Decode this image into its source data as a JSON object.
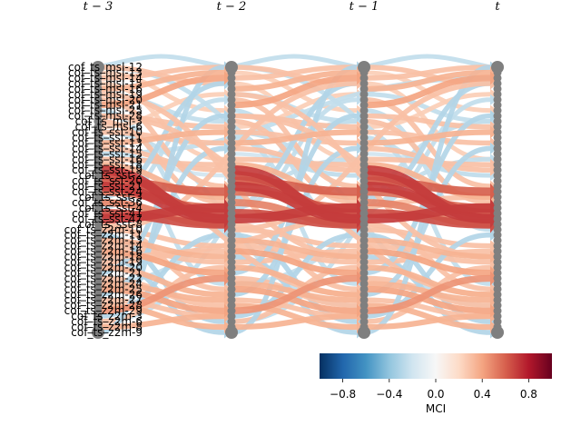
{
  "time_labels": [
    "t − 3",
    "t − 2",
    "t − 1",
    "t"
  ],
  "node_labels": [
    "cof_ts_msl-12",
    "cof_ts_msl-13",
    "cof_ts_msl-14",
    "cof_ts_msl-15",
    "cof_ts_msl-16",
    "cof_ts_msl-19",
    "cof_ts_msl-20",
    "cof_ts_msl-21",
    "cof_ts_msl-25",
    "cof_ts_msl-28",
    "cof_ts_msl-3",
    "cof_ts_msl-6",
    "cof_ts_sst-10",
    "cof_ts_sst-11",
    "cof_ts_sst-13",
    "cof_ts_sst-14",
    "cof_ts_sst-15",
    "cof_ts_sst-16",
    "cof_ts_sst-18",
    "cof_ts_sst-19",
    "cof_ts_sst-2",
    "cof_ts_sst-20",
    "cof_ts_sst-21",
    "cof_ts_sst-24",
    "cof_ts_sst-3",
    "cof_ts_sst-36",
    "cof_ts_sst-4",
    "cof_ts_sst-41",
    "cof_ts_sst-47",
    "cof_ts_sst-8",
    "cof_ts_z2m-10",
    "cof_ts_z2m-11",
    "cof_ts_z2m-13",
    "cof_ts_z2m-14",
    "cof_ts_z2m-16",
    "cof_ts_z2m-18",
    "cof_ts_z2m-19",
    "cof_ts_z2m-20",
    "cof_ts_z2m-21",
    "cof_ts_z2m-22",
    "cof_ts_z2m-24",
    "cof_ts_z2m-25",
    "cof_ts_z2m-26",
    "cof_ts_z2m-27",
    "cof_ts_z2m-28",
    "cof_ts_z2m-29",
    "cof_ts_z2m-3",
    "cof_ts_z2m-6",
    "cof_ts_z2m-8",
    "cof_ts_z2m-9"
  ],
  "colorbar": {
    "title": "MCI",
    "ticks": [
      "−0.8",
      "−0.4",
      "0.0",
      "0.4",
      "0.8"
    ],
    "range": [
      -1,
      1
    ],
    "colors": [
      "#053061",
      "#2166ac",
      "#4393c3",
      "#92c5de",
      "#d1e5f0",
      "#f7f7f7",
      "#fddbc7",
      "#f4a582",
      "#d6604d",
      "#b2182b",
      "#67001f"
    ]
  },
  "node_color": "#7f7f7f",
  "links": [
    {
      "from": 0,
      "to": 0,
      "lag": 1,
      "v": -0.25
    },
    {
      "from": 0,
      "to": 3,
      "lag": 1,
      "v": 0.3
    },
    {
      "from": 1,
      "to": 8,
      "lag": 1,
      "v": 0.25
    },
    {
      "from": 2,
      "to": 0,
      "lag": 1,
      "v": 0.3
    },
    {
      "from": 3,
      "to": 17,
      "lag": 1,
      "v": 0.25
    },
    {
      "from": 4,
      "to": 1,
      "lag": 1,
      "v": 0.35
    },
    {
      "from": 5,
      "to": 10,
      "lag": 1,
      "v": -0.25
    },
    {
      "from": 6,
      "to": 22,
      "lag": 1,
      "v": 0.3
    },
    {
      "from": 7,
      "to": 2,
      "lag": 1,
      "v": 0.4
    },
    {
      "from": 8,
      "to": 30,
      "lag": 1,
      "v": -0.25
    },
    {
      "from": 9,
      "to": 11,
      "lag": 1,
      "v": 0.3
    },
    {
      "from": 10,
      "to": 25,
      "lag": 1,
      "v": 0.3
    },
    {
      "from": 11,
      "to": 5,
      "lag": 1,
      "v": 0.25
    },
    {
      "from": 12,
      "to": 14,
      "lag": 1,
      "v": 0.3
    },
    {
      "from": 13,
      "to": 40,
      "lag": 1,
      "v": -0.25
    },
    {
      "from": 14,
      "to": 12,
      "lag": 1,
      "v": 0.35
    },
    {
      "from": 15,
      "to": 19,
      "lag": 1,
      "v": 0.3
    },
    {
      "from": 16,
      "to": 20,
      "lag": 1,
      "v": -0.2
    },
    {
      "from": 17,
      "to": 18,
      "lag": 1,
      "v": 0.3
    },
    {
      "from": 18,
      "to": 24,
      "lag": 1,
      "v": 0.35
    },
    {
      "from": 19,
      "to": 28,
      "lag": 1,
      "v": 0.7
    },
    {
      "from": 20,
      "to": 27,
      "lag": 1,
      "v": 0.65
    },
    {
      "from": 21,
      "to": 23,
      "lag": 1,
      "v": 0.6
    },
    {
      "from": 22,
      "to": 28,
      "lag": 1,
      "v": 0.7
    },
    {
      "from": 23,
      "to": 26,
      "lag": 1,
      "v": 0.55
    },
    {
      "from": 24,
      "to": 3,
      "lag": 1,
      "v": -0.3
    },
    {
      "from": 25,
      "to": 29,
      "lag": 1,
      "v": 0.5
    },
    {
      "from": 26,
      "to": 6,
      "lag": 1,
      "v": -0.25
    },
    {
      "from": 27,
      "to": 29,
      "lag": 1,
      "v": 0.65
    },
    {
      "from": 28,
      "to": 26,
      "lag": 1,
      "v": 0.7
    },
    {
      "from": 29,
      "to": 41,
      "lag": 1,
      "v": 0.3
    },
    {
      "from": 30,
      "to": 33,
      "lag": 1,
      "v": 0.3
    },
    {
      "from": 31,
      "to": 47,
      "lag": 1,
      "v": -0.3
    },
    {
      "from": 32,
      "to": 35,
      "lag": 1,
      "v": 0.35
    },
    {
      "from": 33,
      "to": 36,
      "lag": 1,
      "v": 0.3
    },
    {
      "from": 34,
      "to": 38,
      "lag": 1,
      "v": 0.4
    },
    {
      "from": 35,
      "to": 49,
      "lag": 1,
      "v": -0.3
    },
    {
      "from": 36,
      "to": 34,
      "lag": 1,
      "v": 0.3
    },
    {
      "from": 37,
      "to": 42,
      "lag": 1,
      "v": 0.35
    },
    {
      "from": 38,
      "to": 9,
      "lag": 1,
      "v": -0.3
    },
    {
      "from": 39,
      "to": 44,
      "lag": 1,
      "v": 0.3
    },
    {
      "from": 40,
      "to": 43,
      "lag": 1,
      "v": 0.35
    },
    {
      "from": 41,
      "to": 45,
      "lag": 1,
      "v": 0.4
    },
    {
      "from": 42,
      "to": 15,
      "lag": 1,
      "v": -0.3
    },
    {
      "from": 43,
      "to": 46,
      "lag": 1,
      "v": 0.3
    },
    {
      "from": 44,
      "to": 48,
      "lag": 1,
      "v": 0.35
    },
    {
      "from": 45,
      "to": 39,
      "lag": 1,
      "v": 0.45
    },
    {
      "from": 46,
      "to": 31,
      "lag": 1,
      "v": -0.3
    },
    {
      "from": 47,
      "to": 37,
      "lag": 1,
      "v": 0.3
    },
    {
      "from": 48,
      "to": 46,
      "lag": 1,
      "v": 0.35
    },
    {
      "from": 49,
      "to": 0,
      "lag": 1,
      "v": -0.3
    },
    {
      "from": 0,
      "to": 20,
      "lag": 2,
      "v": -0.25
    },
    {
      "from": 5,
      "to": 35,
      "lag": 2,
      "v": 0.3
    },
    {
      "from": 12,
      "to": 44,
      "lag": 2,
      "v": -0.25
    },
    {
      "from": 30,
      "to": 3,
      "lag": 2,
      "v": 0.3
    },
    {
      "from": 47,
      "to": 10,
      "lag": 2,
      "v": -0.25
    },
    {
      "from": 22,
      "to": 42,
      "lag": 2,
      "v": 0.3
    },
    {
      "from": 40,
      "to": 17,
      "lag": 2,
      "v": -0.25
    },
    {
      "from": 9,
      "to": 27,
      "lag": 2,
      "v": 0.3
    },
    {
      "from": 16,
      "to": 2,
      "lag": 3,
      "v": -0.25
    },
    {
      "from": 35,
      "to": 24,
      "lag": 3,
      "v": 0.3
    }
  ]
}
